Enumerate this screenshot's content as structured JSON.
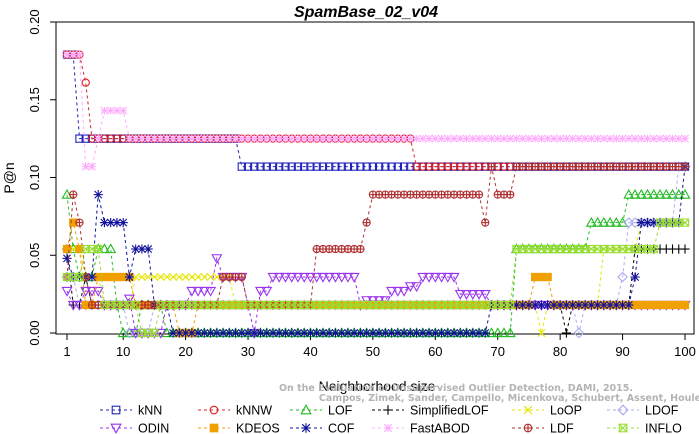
{
  "chart_data": {
    "type": "line",
    "title": "SpamBase_02_v04",
    "xlabel": "Neighborhood size",
    "ylabel": "P@n",
    "xlim": [
      1,
      100
    ],
    "ylim": [
      0,
      0.2
    ],
    "xticks": [
      1,
      10,
      20,
      30,
      40,
      50,
      60,
      70,
      80,
      90,
      100
    ],
    "yticks": [
      0.0,
      0.05,
      0.1,
      0.15,
      0.2
    ],
    "ytick_labels": [
      "0.00",
      "0.05",
      "0.10",
      "0.15",
      "0.20"
    ],
    "grid": false,
    "legend_position": "bottom",
    "credit_lines": [
      "Campos, Zimek, Sander, Campello, Micenkova, Schubert, Assent, Houle",
      "On the Evaluation of Unsupervised Outlier Detection, DAMI, 2015."
    ],
    "series": [
      {
        "name": "kNN",
        "color": "#2222bb",
        "marker": "square",
        "points": [
          [
            1,
            0.179
          ],
          [
            3,
            0.179
          ],
          [
            3,
            0.125
          ],
          [
            29,
            0.125
          ],
          [
            29,
            0.107
          ],
          [
            100,
            0.107
          ]
        ]
      },
      {
        "name": "kNNW",
        "color": "#dd2222",
        "marker": "circle",
        "points": [
          [
            1,
            0.179
          ],
          [
            3,
            0.179
          ],
          [
            4,
            0.161
          ],
          [
            5,
            0.125
          ],
          [
            56,
            0.125
          ],
          [
            57,
            0.107
          ],
          [
            100,
            0.107
          ]
        ]
      },
      {
        "name": "LOF",
        "color": "#22bb22",
        "marker": "triangle-up",
        "points": [
          [
            1,
            0.089
          ],
          [
            2,
            0.054
          ],
          [
            3,
            0.036
          ],
          [
            6,
            0.054
          ],
          [
            8,
            0.054
          ],
          [
            9,
            0.018
          ],
          [
            10,
            0.0
          ],
          [
            12,
            0.0
          ],
          [
            13,
            0.018
          ],
          [
            16,
            0.018
          ],
          [
            17,
            0.0
          ],
          [
            72,
            0.0
          ],
          [
            73,
            0.054
          ],
          [
            84,
            0.054
          ],
          [
            85,
            0.071
          ],
          [
            90,
            0.071
          ],
          [
            91,
            0.089
          ],
          [
            100,
            0.089
          ]
        ]
      },
      {
        "name": "SimplifiedLOF",
        "color": "#000000",
        "marker": "plus",
        "points": [
          [
            1,
            0.054
          ],
          [
            2,
            0.018
          ],
          [
            3,
            0.018
          ],
          [
            4,
            0.036
          ],
          [
            5,
            0.018
          ],
          [
            80,
            0.018
          ],
          [
            81,
            0.0
          ],
          [
            82,
            0.018
          ],
          [
            91,
            0.018
          ],
          [
            92,
            0.054
          ],
          [
            100,
            0.054
          ]
        ]
      },
      {
        "name": "LoOP",
        "color": "#e6e600",
        "marker": "x",
        "points": [
          [
            1,
            0.054
          ],
          [
            3,
            0.054
          ],
          [
            4,
            0.036
          ],
          [
            6,
            0.036
          ],
          [
            7,
            0.018
          ],
          [
            11,
            0.018
          ],
          [
            12,
            0.036
          ],
          [
            27,
            0.036
          ],
          [
            28,
            0.018
          ],
          [
            76,
            0.018
          ],
          [
            77,
            0.0
          ],
          [
            78,
            0.018
          ],
          [
            86,
            0.018
          ],
          [
            87,
            0.054
          ],
          [
            92,
            0.054
          ],
          [
            93,
            0.071
          ],
          [
            100,
            0.071
          ]
        ]
      },
      {
        "name": "LDOF",
        "color": "#aaaaee",
        "marker": "diamond",
        "points": [
          [
            1,
            0.036
          ],
          [
            3,
            0.018
          ],
          [
            10,
            0.018
          ],
          [
            11,
            0.0
          ],
          [
            14,
            0.0
          ],
          [
            15,
            0.018
          ],
          [
            82,
            0.018
          ],
          [
            83,
            0.0
          ],
          [
            84,
            0.018
          ],
          [
            89,
            0.018
          ],
          [
            90,
            0.036
          ],
          [
            91,
            0.071
          ],
          [
            98,
            0.071
          ],
          [
            99,
            0.107
          ],
          [
            100,
            0.107
          ]
        ]
      },
      {
        "name": "ODIN",
        "color": "#9933ee",
        "marker": "triangle-down",
        "points": [
          [
            1,
            0.027
          ],
          [
            2,
            0.018
          ],
          [
            3,
            0.018
          ],
          [
            4,
            0.027
          ],
          [
            6,
            0.027
          ],
          [
            7,
            0.018
          ],
          [
            10,
            0.018
          ],
          [
            11,
            0.022
          ],
          [
            12,
            0.0
          ],
          [
            16,
            0.0
          ],
          [
            17,
            0.018
          ],
          [
            20,
            0.018
          ],
          [
            21,
            0.027
          ],
          [
            25,
            0.048
          ],
          [
            26,
            0.036
          ],
          [
            29,
            0.036
          ],
          [
            30,
            0.018
          ],
          [
            31,
            0.0
          ],
          [
            32,
            0.027
          ],
          [
            34,
            0.036
          ],
          [
            47,
            0.036
          ],
          [
            48,
            0.018
          ],
          [
            49,
            0.021
          ],
          [
            53,
            0.027
          ],
          [
            56,
            0.03
          ],
          [
            58,
            0.036
          ],
          [
            63,
            0.036
          ],
          [
            64,
            0.025
          ],
          [
            68,
            0.025
          ],
          [
            69,
            0.018
          ],
          [
            100,
            0.018
          ]
        ]
      },
      {
        "name": "KDEOS",
        "color": "#f0a000",
        "marker": "square-filled",
        "points": [
          [
            1,
            0.054
          ],
          [
            2,
            0.071
          ],
          [
            3,
            0.054
          ],
          [
            4,
            0.018
          ],
          [
            5,
            0.018
          ],
          [
            6,
            0.036
          ],
          [
            11,
            0.036
          ],
          [
            12,
            0.018
          ],
          [
            18,
            0.018
          ],
          [
            19,
            0.0
          ],
          [
            21,
            0.0
          ],
          [
            22,
            0.018
          ],
          [
            75,
            0.018
          ],
          [
            76,
            0.036
          ],
          [
            78,
            0.036
          ],
          [
            79,
            0.018
          ],
          [
            100,
            0.018
          ]
        ]
      },
      {
        "name": "COF",
        "color": "#11119a",
        "marker": "asterisk",
        "points": [
          [
            1,
            0.048
          ],
          [
            2,
            0.036
          ],
          [
            5,
            0.036
          ],
          [
            6,
            0.089
          ],
          [
            7,
            0.071
          ],
          [
            10,
            0.071
          ],
          [
            11,
            0.036
          ],
          [
            12,
            0.054
          ],
          [
            14,
            0.054
          ],
          [
            15,
            0.018
          ],
          [
            17,
            0.018
          ],
          [
            18,
            0.0
          ],
          [
            68,
            0.0
          ],
          [
            69,
            0.018
          ],
          [
            91,
            0.018
          ],
          [
            92,
            0.036
          ],
          [
            93,
            0.071
          ],
          [
            100,
            0.107
          ]
        ]
      },
      {
        "name": "FastABOD",
        "color": "#ffaaff",
        "marker": "plus-x",
        "points": [
          [
            1,
            0.179
          ],
          [
            3,
            0.179
          ],
          [
            4,
            0.107
          ],
          [
            5,
            0.107
          ],
          [
            6,
            0.125
          ],
          [
            7,
            0.143
          ],
          [
            10,
            0.143
          ],
          [
            11,
            0.125
          ],
          [
            100,
            0.125
          ]
        ]
      },
      {
        "name": "LDF",
        "color": "#b03030",
        "marker": "circle-plus",
        "points": [
          [
            1,
            0.036
          ],
          [
            2,
            0.089
          ],
          [
            3,
            0.071
          ],
          [
            4,
            0.036
          ],
          [
            5,
            0.018
          ],
          [
            25,
            0.018
          ],
          [
            26,
            0.036
          ],
          [
            29,
            0.036
          ],
          [
            30,
            0.018
          ],
          [
            40,
            0.018
          ],
          [
            41,
            0.054
          ],
          [
            48,
            0.054
          ],
          [
            49,
            0.071
          ],
          [
            50,
            0.089
          ],
          [
            67,
            0.089
          ],
          [
            68,
            0.071
          ],
          [
            69,
            0.107
          ],
          [
            70,
            0.089
          ],
          [
            72,
            0.089
          ],
          [
            73,
            0.107
          ],
          [
            100,
            0.107
          ]
        ]
      },
      {
        "name": "INFLO",
        "color": "#99dd33",
        "marker": "square-x",
        "points": [
          [
            1,
            0.036
          ],
          [
            3,
            0.036
          ],
          [
            4,
            0.054
          ],
          [
            6,
            0.054
          ],
          [
            7,
            0.018
          ],
          [
            12,
            0.018
          ],
          [
            13,
            0.0
          ],
          [
            15,
            0.0
          ],
          [
            16,
            0.018
          ],
          [
            72,
            0.018
          ],
          [
            73,
            0.054
          ],
          [
            95,
            0.054
          ],
          [
            96,
            0.071
          ],
          [
            100,
            0.071
          ]
        ]
      }
    ]
  }
}
